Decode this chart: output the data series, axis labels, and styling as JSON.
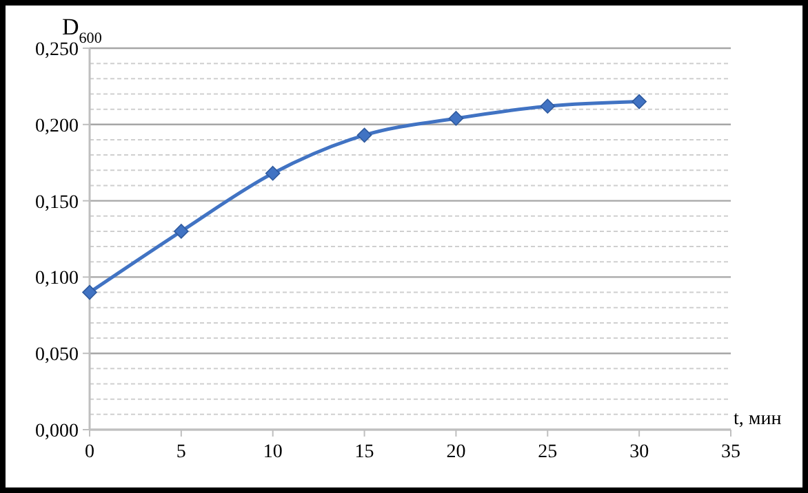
{
  "chart_data": {
    "type": "line",
    "ylabel": "D$_{600}$",
    "xlabel": "t, мин",
    "x": [
      0,
      5,
      10,
      15,
      20,
      25,
      30
    ],
    "series": [
      {
        "color": "#4173c3",
        "values": [
          0.09,
          0.13,
          0.168,
          0.193,
          0.204,
          0.212,
          0.215
        ]
      }
    ],
    "xlim": [
      0,
      35
    ],
    "xticks": [
      0,
      5,
      10,
      15,
      20,
      25,
      30,
      35
    ],
    "ylim": [
      0,
      0.25
    ],
    "yticks": [
      {
        "value": 0,
        "label": "0,000"
      },
      {
        "value": 0.01,
        "label": null
      },
      {
        "value": 0.02,
        "label": null
      },
      {
        "value": 0.03,
        "label": null
      },
      {
        "value": 0.04,
        "label": null
      },
      {
        "value": 0.05,
        "label": "0,050"
      },
      {
        "value": 0.06,
        "label": null
      },
      {
        "value": 0.07,
        "label": null
      },
      {
        "value": 0.08,
        "label": null
      },
      {
        "value": 0.09,
        "label": null
      },
      {
        "value": 0.1,
        "label": "0,100"
      },
      {
        "value": 0.11,
        "label": null
      },
      {
        "value": 0.12,
        "label": null
      },
      {
        "value": 0.13,
        "label": null
      },
      {
        "value": 0.14,
        "label": null
      },
      {
        "value": 0.15,
        "label": "0,150"
      },
      {
        "value": 0.16,
        "label": null
      },
      {
        "value": 0.17,
        "label": null
      },
      {
        "value": 0.18,
        "label": null
      },
      {
        "value": 0.19,
        "label": null
      },
      {
        "value": 0.2,
        "label": "0,200"
      },
      {
        "value": 0.21,
        "label": null
      },
      {
        "value": 0.22,
        "label": null
      },
      {
        "value": 0.23,
        "label": null
      },
      {
        "value": 0.24,
        "label": null
      },
      {
        "value": 0.25,
        "label": "0,250"
      }
    ],
    "grid": "y",
    "marker": "diamond",
    "line_style": "solid"
  }
}
